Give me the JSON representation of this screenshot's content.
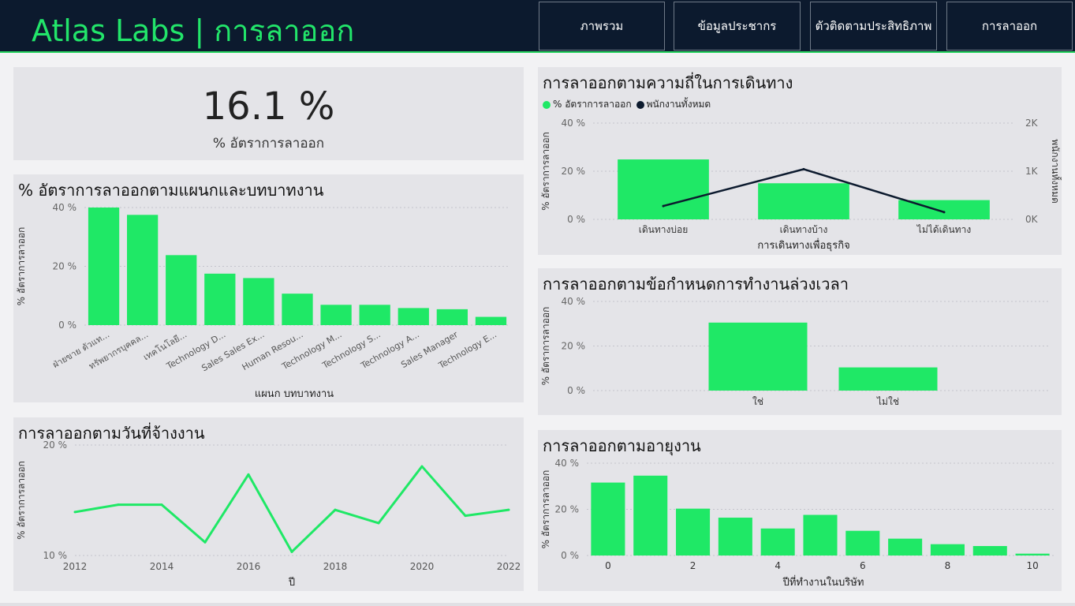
{
  "header": {
    "title": "Atlas Labs | การลาออก",
    "nav": [
      {
        "label": "ภาพรวม"
      },
      {
        "label": "ข้อมูลประชากร"
      },
      {
        "label": "ตัวติดตามประสิทธิภาพ"
      },
      {
        "label": "การลาออก"
      }
    ]
  },
  "colors": {
    "accent": "#22e56a",
    "bar": "#1fe866",
    "line_dark": "#0c1a2e",
    "header_bg": "#0c1a2e"
  },
  "kpi": {
    "value": "16.1 %",
    "label": "% อัตราการลาออก"
  },
  "panels": {
    "dept": {
      "title": "% อัตราการลาออกตามแผนกและบทบาทงาน"
    },
    "hire": {
      "title": "การลาออกตามวันที่จ้างงาน"
    },
    "travel": {
      "title": "การลาออกตามความถี่ในการเดินทาง"
    },
    "overtime": {
      "title": "การลาออกตามข้อกำหนดการทำงานล่วงเวลา"
    },
    "tenure": {
      "title": "การลาออกตามอายุงาน"
    }
  },
  "chart_data": [
    {
      "id": "dept",
      "type": "bar",
      "title": "% อัตราการลาออกตามแผนกและบทบาทงาน",
      "xlabel": "แผนก บทบาทงาน",
      "ylabel": "% อัตราการลาออก",
      "categories": [
        "ฝ่ายขาย ตัวแท...",
        "ทรัพยากรบุคคล...",
        "เทคโนโลยี...",
        "Technology D...",
        "Sales Sales Ex...",
        "Human Resou...",
        "Technology M...",
        "Technology S...",
        "Technology A...",
        "Sales Manager",
        "Technology E..."
      ],
      "values": [
        40,
        37.5,
        23.8,
        17.5,
        16,
        10.7,
        6.9,
        6.9,
        5.8,
        5.4,
        2.8
      ],
      "ylim": [
        0,
        40
      ],
      "yticks": [
        "0 %",
        "20 %",
        "40 %"
      ],
      "grid": true
    },
    {
      "id": "hire",
      "type": "line",
      "title": "การลาออกตามวันที่จ้างงาน",
      "xlabel": "ปี",
      "ylabel": "% อัตราการลาออก",
      "x": [
        2012,
        2013,
        2014,
        2015,
        2016,
        2017,
        2018,
        2019,
        2020,
        2021,
        2022
      ],
      "values": [
        15.9,
        16.9,
        16.9,
        11.8,
        21,
        10.5,
        16.2,
        14.4,
        22.1,
        15.4,
        16.2
      ],
      "xticks": [
        "2012",
        "2014",
        "2016",
        "2018",
        "2020",
        "2022"
      ],
      "ylim": [
        10,
        25
      ],
      "yticks": [
        "10 %",
        "20 %"
      ],
      "grid": true
    },
    {
      "id": "travel",
      "type": "bar",
      "title": "การลาออกตามความถี่ในการเดินทาง",
      "xlabel": "การเดินทางเพื่อธุรกิจ",
      "ylabel": "% อัตราการลาออก",
      "y2label": "พนักงานทั้งหมด",
      "legend": [
        "% อัตราการลาออก",
        "พนักงานทั้งหมด"
      ],
      "legend_position": "top-left",
      "categories": [
        "เดินทางบ่อย",
        "เดินทางบ้าง",
        "ไม่ได้เดินทาง"
      ],
      "series": [
        {
          "name": "% อัตราการลาออก",
          "values": [
            24.9,
            15,
            8
          ],
          "axis": "left",
          "kind": "bar"
        },
        {
          "name": "พนักงานทั้งหมด",
          "values": [
            277,
            1043,
            150
          ],
          "axis": "right",
          "kind": "line"
        }
      ],
      "ylim": [
        0,
        40
      ],
      "yticks": [
        "0 %",
        "20 %",
        "40 %"
      ],
      "y2lim": [
        0,
        2000
      ],
      "y2ticks": [
        "0K",
        "1K",
        "2K"
      ],
      "grid": true
    },
    {
      "id": "overtime",
      "type": "bar",
      "title": "การลาออกตามข้อกำหนดการทำงานล่วงเวลา",
      "xlabel": "",
      "ylabel": "% อัตราการลาออก",
      "categories": [
        "ใช่",
        "ไม่ใช่"
      ],
      "values": [
        30.5,
        10.4
      ],
      "ylim": [
        0,
        40
      ],
      "yticks": [
        "0 %",
        "20 %",
        "40 %"
      ],
      "grid": true
    },
    {
      "id": "tenure",
      "type": "bar",
      "title": "การลาออกตามอายุงาน",
      "xlabel": "ปีที่ทำงานในบริษัท",
      "ylabel": "% อัตราการลาออก",
      "categories": [
        "0",
        "1",
        "2",
        "3",
        "4",
        "5",
        "6",
        "7",
        "8",
        "9",
        "10"
      ],
      "values": [
        31.6,
        34.6,
        20.3,
        16.4,
        11.7,
        17.6,
        10.7,
        7.3,
        4.9,
        4.1,
        0.8
      ],
      "xticks": [
        "0",
        "2",
        "4",
        "6",
        "8",
        "10"
      ],
      "ylim": [
        0,
        40
      ],
      "yticks": [
        "0 %",
        "20 %",
        "40 %"
      ],
      "grid": true
    }
  ]
}
